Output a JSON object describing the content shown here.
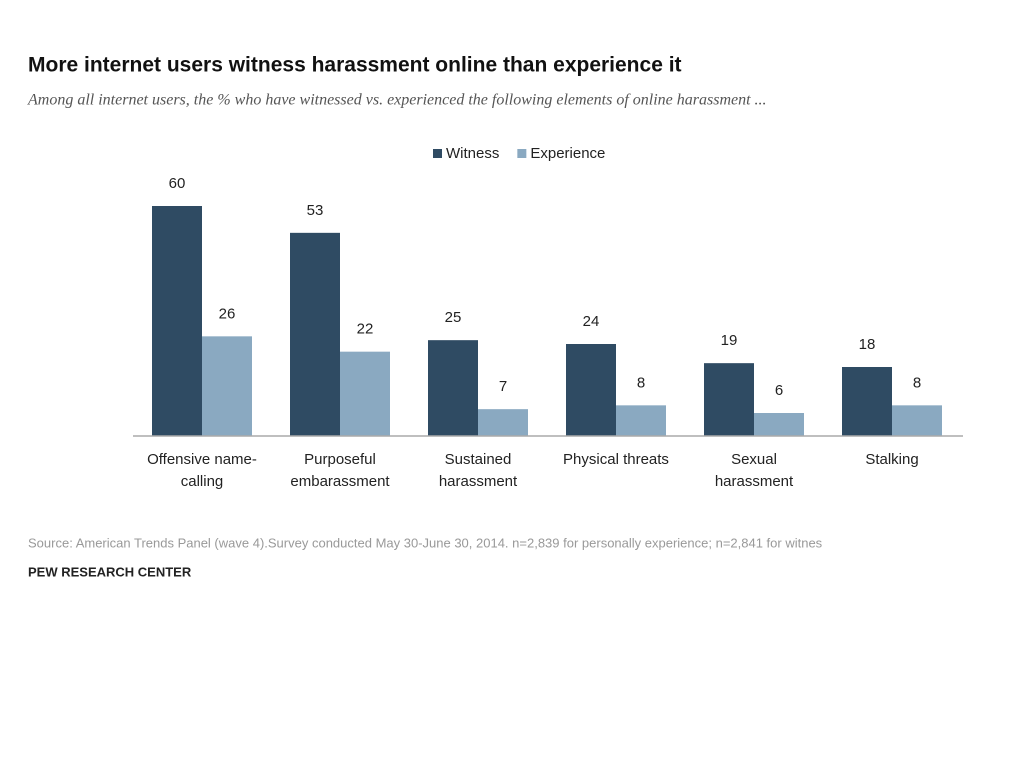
{
  "chart_data": {
    "type": "bar",
    "title": "More internet users witness harassment online than experience it",
    "subtitle": "Among all internet users, the % who have witnessed vs. experienced the following elements of online harassment ...",
    "categories": [
      "Offensive name-calling",
      "Purposeful embarassment",
      "Sustained harassment",
      "Physical threats",
      "Sexual harassment",
      "Stalking"
    ],
    "series": [
      {
        "name": "Witness",
        "color": "#2f4b63",
        "values": [
          60,
          53,
          25,
          24,
          19,
          18
        ]
      },
      {
        "name": "Experience",
        "color": "#8aa9c1",
        "values": [
          26,
          22,
          7,
          8,
          6,
          8
        ]
      }
    ],
    "source": "Source: American Trends Panel (wave 4).Survey conducted May 30-June 30, 2014. n=2,839 for personally experience; n=2,841 for witnes",
    "credit": "PEW RESEARCH CENTER"
  }
}
